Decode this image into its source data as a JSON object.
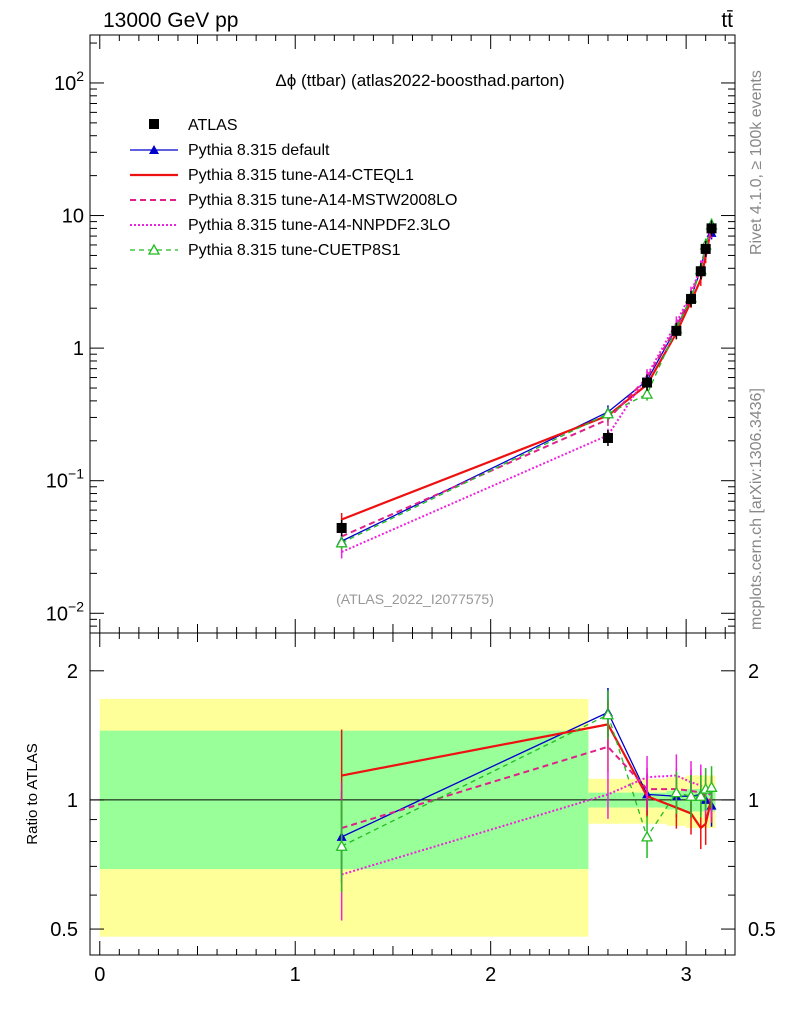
{
  "header": {
    "energy_label": "13000 GeV pp",
    "process_label": "tt̄",
    "side_label_rivet": "Rivet 4.1.0, ≥ 100k events",
    "side_label_mcplots": "mcplots.cern.ch [arXiv:1306.3436]"
  },
  "colors": {
    "atlas": "#000000",
    "default": "#0000cc",
    "cteql1": "#ee1111",
    "mstw": "#e0208a",
    "nnpdf": "#ee22dd",
    "cuetp8s1": "#22bb22",
    "band_inner": "#99ff99",
    "band_outer": "#ffff99"
  },
  "chart_data": [
    {
      "name": "main",
      "type": "line",
      "title": "Δϕ (ttbar) (atlas2022-boosthad.parton)",
      "watermark": "(ATLAS_2022_I2077575)",
      "yscale": "log",
      "xlim": [
        -0.05,
        3.25
      ],
      "ylim": [
        0.0071,
        230
      ],
      "ytick_labels": [
        "10^-2",
        "10^-1",
        "1",
        "10",
        "10^2"
      ],
      "x": [
        1.2375,
        2.6,
        2.8,
        2.95,
        3.025,
        3.075,
        3.1,
        3.13
      ],
      "atlas": {
        "label": "ATLAS",
        "values": [
          0.044,
          0.21,
          0.55,
          1.35,
          2.35,
          3.8,
          5.6,
          8.0
        ]
      },
      "series": [
        {
          "key": "default",
          "label": "Pythia 8.315 default",
          "values": [
            0.035,
            0.33,
            0.57,
            1.42,
            2.4,
            3.95,
            5.8,
            7.4
          ]
        },
        {
          "key": "cteql1",
          "label": "Pythia 8.315 tune-A14-CTEQL1",
          "values": [
            0.051,
            0.31,
            0.53,
            1.3,
            2.25,
            3.3,
            4.9,
            8.2
          ]
        },
        {
          "key": "mstw",
          "label": "Pythia 8.315 tune-A14-MSTW2008LO",
          "values": [
            0.038,
            0.29,
            0.6,
            1.45,
            2.5,
            4.0,
            5.8,
            7.9
          ]
        },
        {
          "key": "nnpdf",
          "label": "Pythia 8.315 tune-A14-NNPDF2.3LO",
          "values": [
            0.029,
            0.22,
            0.62,
            1.55,
            2.6,
            4.1,
            5.9,
            7.6
          ]
        },
        {
          "key": "cuetp8s1",
          "label": "Pythia 8.315 tune-CUETP8S1",
          "values": [
            0.034,
            0.32,
            0.45,
            1.4,
            2.4,
            3.9,
            6.0,
            8.5
          ]
        }
      ]
    },
    {
      "name": "ratio",
      "type": "line",
      "ylabel": "Ratio to ATLAS",
      "yscale": "log",
      "xlim": [
        -0.05,
        3.25
      ],
      "ylim": [
        0.435,
        2.45
      ],
      "ytick_labels": [
        "0.5",
        "1",
        "2"
      ],
      "xtick_labels": [
        "0",
        "1",
        "2",
        "3"
      ],
      "bands": [
        {
          "x": [
            0,
            2.5
          ],
          "inner": [
            0.69,
            1.45
          ],
          "outer": [
            0.48,
            1.72
          ]
        },
        {
          "x": [
            2.5,
            2.9
          ],
          "inner": [
            0.96,
            1.04
          ],
          "outer": [
            0.88,
            1.12
          ]
        },
        {
          "x": [
            2.9,
            3.0
          ],
          "inner": [
            0.95,
            1.05
          ],
          "outer": [
            0.87,
            1.13
          ]
        },
        {
          "x": [
            3.0,
            3.15
          ],
          "inner": [
            0.94,
            1.06
          ],
          "outer": [
            0.86,
            1.14
          ]
        }
      ],
      "series": [
        {
          "key": "default",
          "values": [
            0.82,
            1.6,
            1.03,
            1.02,
            1.02,
            1.03,
            1.0,
            0.97
          ]
        },
        {
          "key": "cteql1",
          "values": [
            1.14,
            1.5,
            1.02,
            0.96,
            0.93,
            0.86,
            0.88,
            1.01
          ]
        },
        {
          "key": "mstw",
          "values": [
            0.86,
            1.33,
            1.06,
            1.06,
            1.05,
            1.04,
            1.02,
            0.99
          ]
        },
        {
          "key": "nnpdf",
          "values": [
            0.67,
            1.03,
            1.13,
            1.14,
            1.1,
            1.08,
            1.05,
            1.02
          ]
        },
        {
          "key": "cuetp8s1",
          "values": [
            0.78,
            1.58,
            0.82,
            1.04,
            1.02,
            1.02,
            1.06,
            1.07
          ]
        }
      ]
    }
  ]
}
